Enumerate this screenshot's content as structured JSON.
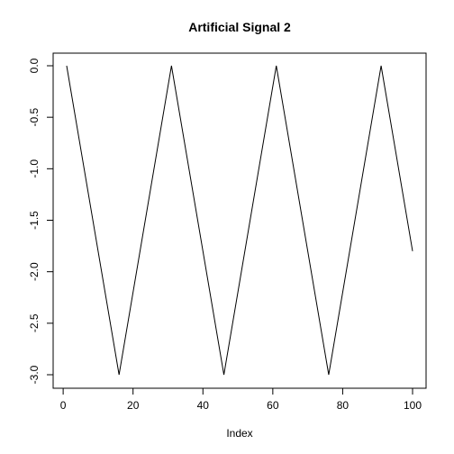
{
  "chart_data": {
    "type": "line",
    "title": "Artificial Signal 2",
    "xlabel": "Index",
    "ylabel": "",
    "xlim": [
      1,
      100
    ],
    "ylim": [
      -3.0,
      0.0
    ],
    "x_ticks": [
      0,
      20,
      40,
      60,
      80,
      100
    ],
    "x_tick_labels": [
      "0",
      "20",
      "40",
      "60",
      "80",
      "100"
    ],
    "y_ticks": [
      0.0,
      -0.5,
      -1.0,
      -1.5,
      -2.0,
      -2.5,
      -3.0
    ],
    "y_tick_labels": [
      "0.0",
      "-0.5",
      "-1.0",
      "-1.5",
      "-2.0",
      "-2.5",
      "-3.0"
    ],
    "grid": false,
    "legend": "none",
    "series": [
      {
        "color": "#000000",
        "x": [
          1,
          16,
          31,
          46,
          61,
          76,
          91,
          100
        ],
        "y": [
          0.0,
          -3.0,
          0.0,
          -3.0,
          0.0,
          -3.0,
          0.0,
          -1.8
        ]
      }
    ]
  }
}
